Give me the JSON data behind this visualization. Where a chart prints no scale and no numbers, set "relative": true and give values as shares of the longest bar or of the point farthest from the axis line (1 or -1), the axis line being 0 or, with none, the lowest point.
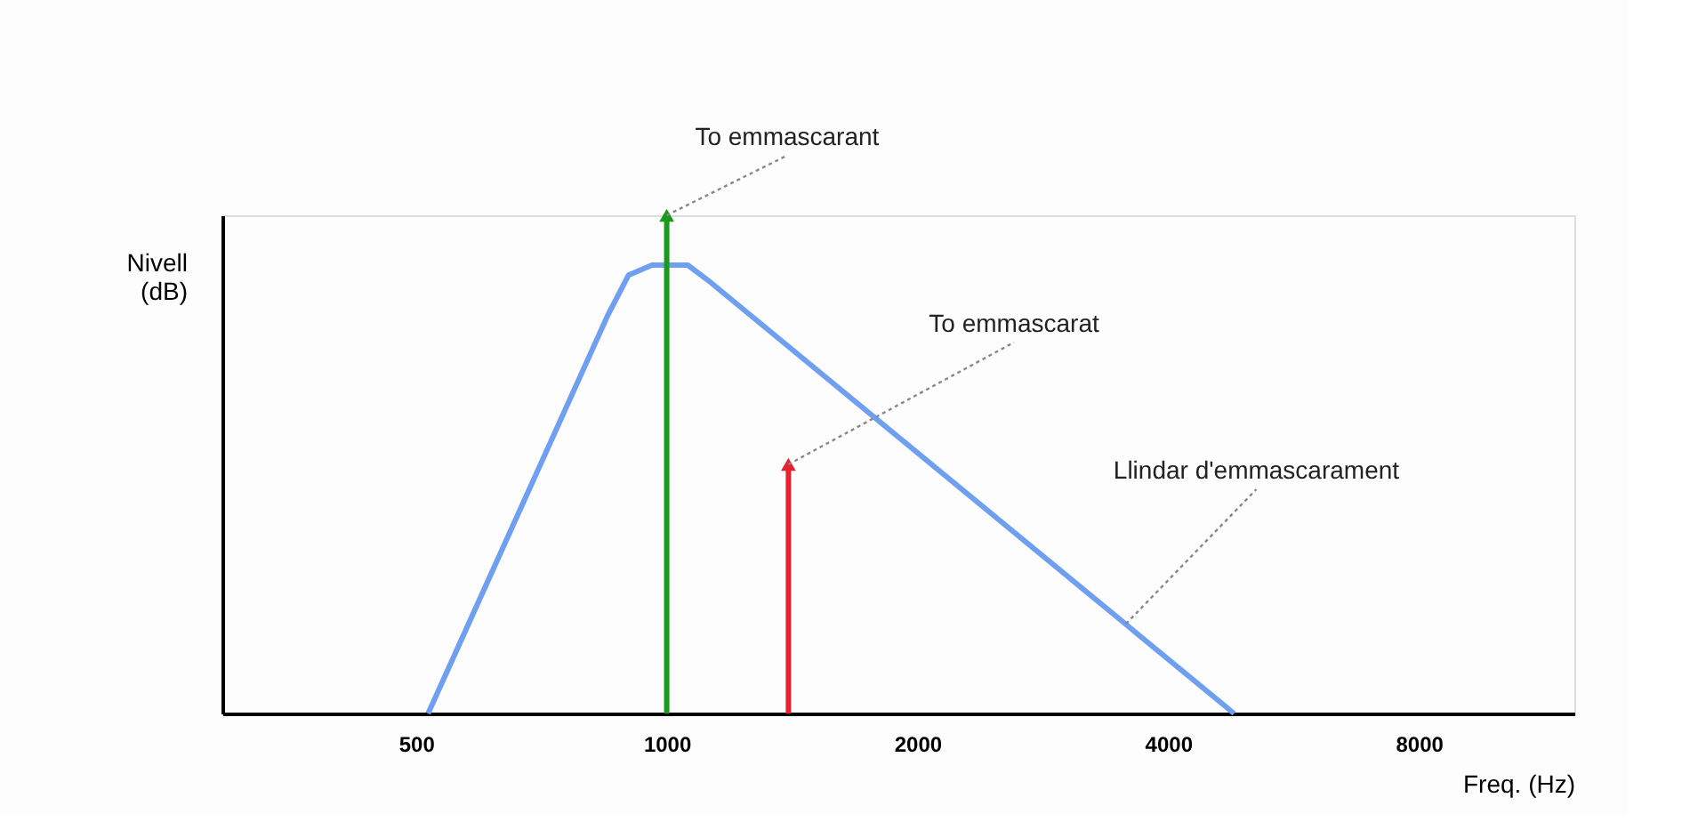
{
  "chart_data": {
    "type": "line",
    "relative": true,
    "xlabel": "Freq. (Hz)",
    "ylabel": "Nivell (dB)",
    "log": "x",
    "xlim": [
      300,
      12000
    ],
    "xticks": [
      500,
      1000,
      2000,
      4000,
      8000
    ],
    "grid": false,
    "tick_labels": "x",
    "series": [
      {
        "color": "#6f9ff0",
        "x": [
          517,
          850,
          900,
          960,
          1060,
          1120,
          4800
        ],
        "values": [
          0,
          0.8,
          0.88,
          0.9,
          0.9,
          0.87,
          0
        ]
      },
      {
        "type": "bar",
        "color": "#1a9a1a",
        "x": [
          1000
        ],
        "values": [
          1
        ]
      },
      {
        "type": "bar",
        "color": "#e8202f",
        "x": [
          1400
        ],
        "values": [
          0.5
        ]
      }
    ],
    "annotations": [
      {
        "text": "To emmascarant",
        "x": 1000,
        "y": 1
      },
      {
        "text": "To emmascarat",
        "x": 1400,
        "y": 0.5
      },
      {
        "text": "Llindar d'emmascarament",
        "x": 3560,
        "y": 0.18
      }
    ]
  }
}
